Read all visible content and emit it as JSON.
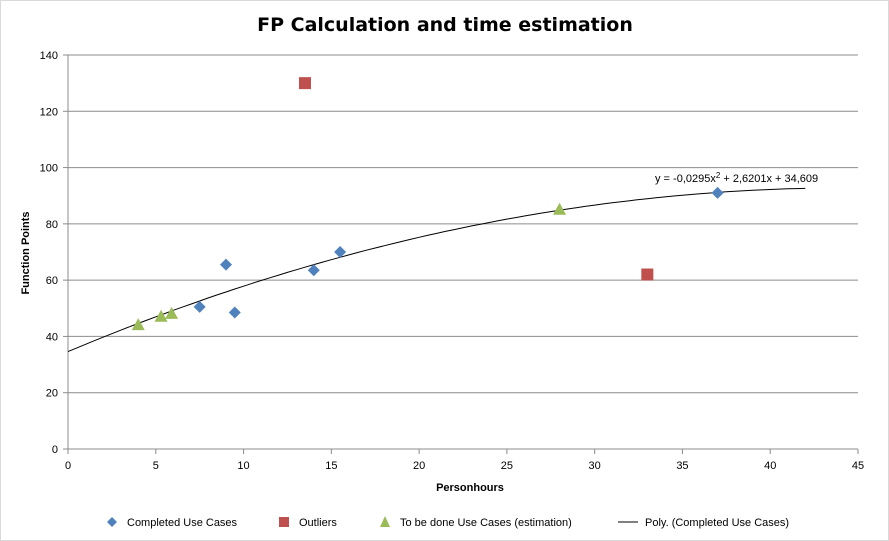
{
  "chart_data": {
    "type": "scatter",
    "title": "FP Calculation and time estimation",
    "xlabel": "Personhours",
    "ylabel": "Function Points",
    "xlim": [
      0,
      45
    ],
    "ylim": [
      0,
      140
    ],
    "xticks": [
      0,
      5,
      10,
      15,
      20,
      25,
      30,
      35,
      40,
      45
    ],
    "yticks": [
      0,
      20,
      40,
      60,
      80,
      100,
      120,
      140
    ],
    "grid": "horizontal",
    "legend_position": "bottom",
    "series": [
      {
        "name": "Completed Use Cases",
        "marker": "diamond",
        "color": "#4F81BD",
        "points": [
          [
            7.5,
            50.5
          ],
          [
            9,
            65.5
          ],
          [
            9.5,
            48.5
          ],
          [
            14,
            63.5
          ],
          [
            15.5,
            70
          ],
          [
            37,
            91
          ]
        ]
      },
      {
        "name": "Outliers",
        "marker": "square",
        "color": "#C0504D",
        "points": [
          [
            13.5,
            130
          ],
          [
            33,
            62
          ]
        ]
      },
      {
        "name": "To be done Use Cases (estimation)",
        "marker": "triangle",
        "color": "#9BBB59",
        "points": [
          [
            4,
            44
          ],
          [
            5.3,
            47
          ],
          [
            5.9,
            48
          ],
          [
            28,
            85
          ]
        ]
      }
    ],
    "trendline": {
      "name": "Poly. (Completed Use Cases)",
      "color": "#000000",
      "coefficients": [
        -0.0295,
        2.6201,
        34.609
      ],
      "x_range": [
        0,
        42
      ],
      "equation_prefix": "y = -0,0295x",
      "equation_exponent": "2",
      "equation_suffix": " + 2,6201x + 34,609"
    }
  }
}
